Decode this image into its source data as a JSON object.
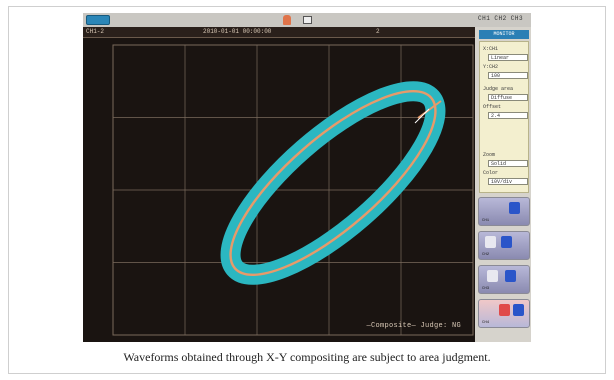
{
  "caption": "Waveforms obtained through X-Y compositing are subject to area judgment.",
  "status_bar": {
    "right_text": "CH1 CH2 CH3"
  },
  "plot": {
    "header_left": "CH1-2",
    "header_mid": "2010-01-01 00:00:00",
    "header_right": "2"
  },
  "footer_label": "—Composite—   Judge: NG",
  "side_panel": {
    "tab_label": "MONITOR",
    "card_lines": [
      "X:CH1",
      "Y:CH2",
      "Judge area",
      "Offset",
      "Zoom",
      "Color"
    ],
    "card_fields": [
      "Linear",
      "100",
      "Diffuse",
      "2.4",
      "Solid",
      "10V/div"
    ],
    "thumb_captions": [
      "CH1",
      "CH2",
      "CH3",
      "CH4"
    ]
  },
  "colors": {
    "judge_band": "#2bb7c1",
    "trace": "#e79a6a",
    "grid": "#7a6a5c",
    "screen_bg": "#1a1411"
  }
}
